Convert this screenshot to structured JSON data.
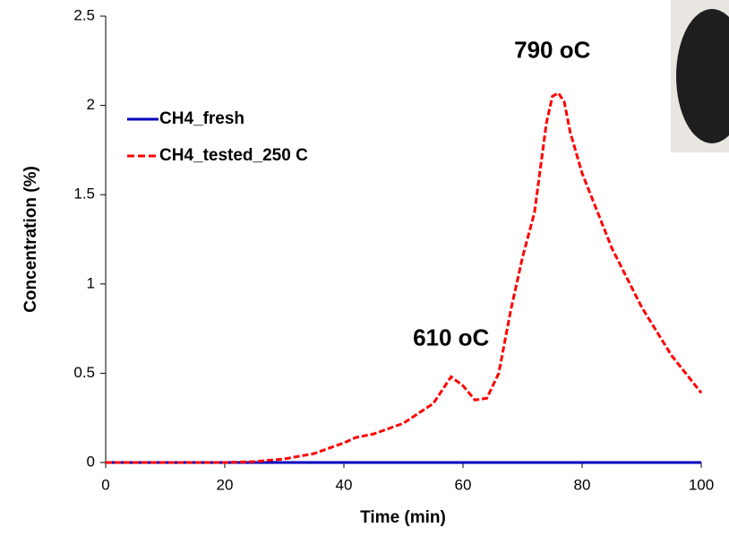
{
  "chart_data": {
    "type": "line",
    "xlabel": "Time (min)",
    "ylabel": "Concentration (%)",
    "x": [
      0,
      5,
      10,
      15,
      20,
      25,
      30,
      35,
      40,
      42,
      45,
      50,
      55,
      58,
      60,
      62,
      64,
      66,
      68,
      70,
      72,
      74,
      75,
      76,
      77,
      78,
      80,
      85,
      90,
      95,
      100
    ],
    "series": [
      {
        "name": "CH4_fresh",
        "color": "#0000c0",
        "dash": false,
        "values": [
          0,
          0,
          0,
          0,
          0,
          0,
          0,
          0,
          0,
          0,
          0,
          0,
          0,
          0,
          0,
          0,
          0,
          0,
          0,
          0,
          0,
          0,
          0,
          0,
          0,
          0,
          0,
          0,
          0,
          0,
          0
        ]
      },
      {
        "name": "CH4_tested_250 C",
        "color": "#ff0000",
        "dash": true,
        "values": [
          0,
          0,
          0,
          0,
          0,
          0.005,
          0.02,
          0.05,
          0.11,
          0.14,
          0.16,
          0.22,
          0.33,
          0.48,
          0.43,
          0.35,
          0.36,
          0.5,
          0.85,
          1.15,
          1.4,
          1.9,
          2.05,
          2.07,
          2.02,
          1.85,
          1.62,
          1.2,
          0.87,
          0.6,
          0.39
        ]
      }
    ],
    "xlim": [
      0,
      100
    ],
    "xticks": [
      0,
      20,
      40,
      60,
      80,
      100
    ],
    "ylim": [
      0,
      2.5
    ],
    "yticks": [
      0,
      0.5,
      1,
      1.5,
      2,
      2.5
    ],
    "legend": "upper left",
    "annotations": [
      {
        "text": "790 oC",
        "x": 75,
        "y": 2.3
      },
      {
        "text": "610 oC",
        "x": 58,
        "y": 0.69
      }
    ]
  }
}
